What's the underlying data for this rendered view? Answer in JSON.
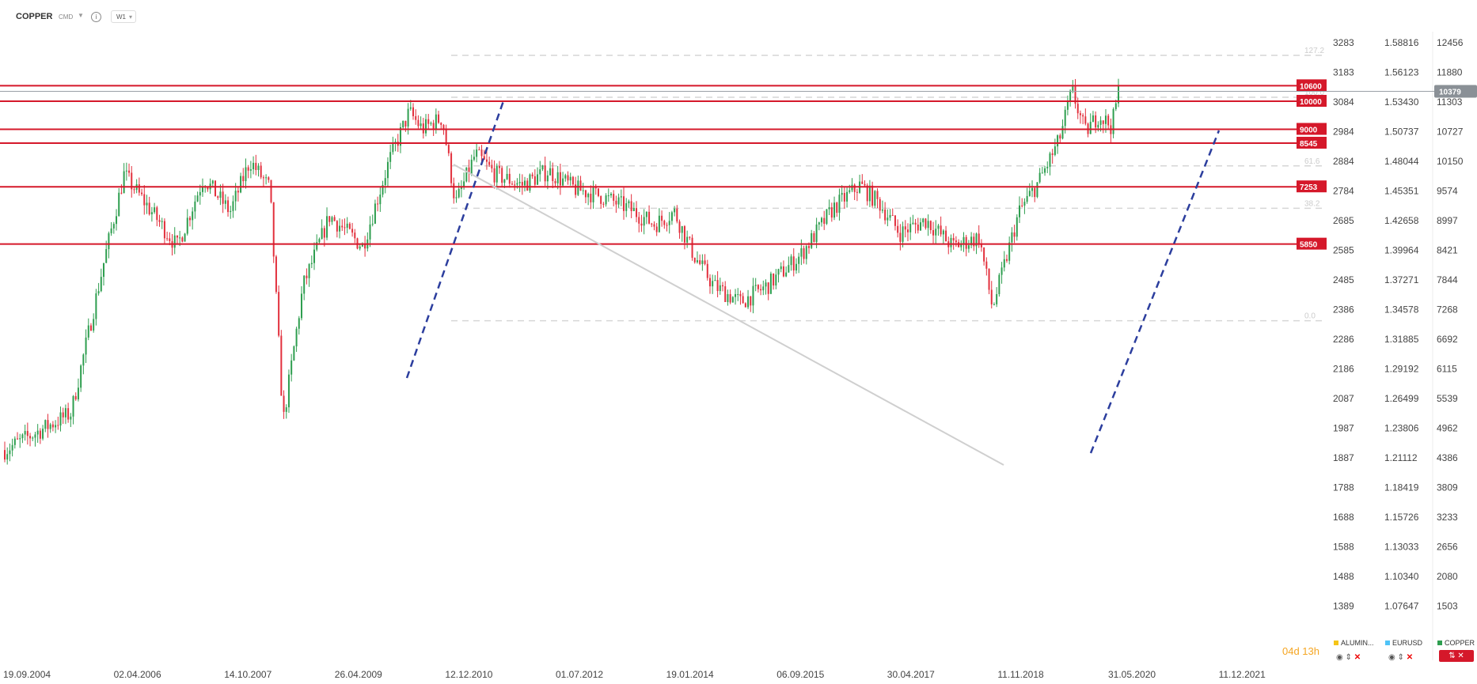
{
  "header": {
    "symbol": "COPPER",
    "symbol_type": "CMD",
    "timeframe": "W1"
  },
  "axis": {
    "left_prices": [
      "3283",
      "3183",
      "3084",
      "2984",
      "2884",
      "2784",
      "2685",
      "2585",
      "2485",
      "2386",
      "2286",
      "2186",
      "2087",
      "1987",
      "1887",
      "1788",
      "1688",
      "1588",
      "1488",
      "1389"
    ],
    "mid_prices": [
      "1.58816",
      "1.56123",
      "1.53430",
      "1.50737",
      "1.48044",
      "1.45351",
      "1.42658",
      "1.39964",
      "1.37271",
      "1.34578",
      "1.31885",
      "1.29192",
      "1.26499",
      "1.23806",
      "1.21112",
      "1.18419",
      "1.15726",
      "1.13033",
      "1.10340",
      "1.07647"
    ],
    "right_prices": [
      "12456",
      "11880",
      "11303",
      "10727",
      "10150",
      "9574",
      "8997",
      "8421",
      "7844",
      "7268",
      "6692",
      "6115",
      "5539",
      "4962",
      "4386",
      "3809",
      "3233",
      "2656",
      "2080",
      "1503"
    ],
    "current_price": "10379"
  },
  "chart_data": {
    "type": "candlestick",
    "symbol": "COPPER",
    "timeframe": "W1",
    "x_dates": [
      "19.09.2004",
      "02.04.2006",
      "14.10.2007",
      "26.04.2009",
      "12.12.2010",
      "01.07.2012",
      "19.01.2014",
      "06.09.2015",
      "30.04.2017",
      "11.11.2018",
      "31.05.2020",
      "11.12.2021"
    ],
    "y_range": [
      1503,
      12456
    ],
    "current_price": 10379,
    "horizontal_levels": [
      {
        "label": "10600",
        "value": 10600
      },
      {
        "label": "10000",
        "value": 10000
      },
      {
        "label": "9000",
        "value": 9000
      },
      {
        "label": "8545",
        "value": 8545
      },
      {
        "label": "7253",
        "value": 7253
      },
      {
        "label": "5850",
        "value": 5850
      }
    ],
    "fibonacci_levels": [
      {
        "label": "127.2",
        "value": 11880
      },
      {
        "label": "100.0",
        "value": 10150
      },
      {
        "label": "61.6",
        "value": 7844
      },
      {
        "label": "38.2",
        "value": 6692
      },
      {
        "label": "0.0",
        "value": 4386
      }
    ],
    "approx_close_path": [
      [
        0,
        2700
      ],
      [
        0.05,
        3100
      ],
      [
        0.075,
        5500
      ],
      [
        0.09,
        7600
      ],
      [
        0.13,
        5800
      ],
      [
        0.15,
        7500
      ],
      [
        0.17,
        6600
      ],
      [
        0.185,
        8000
      ],
      [
        0.2,
        7200
      ],
      [
        0.21,
        3000
      ],
      [
        0.225,
        5000
      ],
      [
        0.245,
        6500
      ],
      [
        0.27,
        5800
      ],
      [
        0.29,
        8000
      ],
      [
        0.305,
        9600
      ],
      [
        0.315,
        9000
      ],
      [
        0.33,
        9400
      ],
      [
        0.34,
        6800
      ],
      [
        0.355,
        8200
      ],
      [
        0.37,
        7600
      ],
      [
        0.39,
        7300
      ],
      [
        0.41,
        7700
      ],
      [
        0.43,
        7200
      ],
      [
        0.45,
        7000
      ],
      [
        0.47,
        6700
      ],
      [
        0.49,
        6300
      ],
      [
        0.505,
        6600
      ],
      [
        0.52,
        5600
      ],
      [
        0.535,
        5000
      ],
      [
        0.555,
        4700
      ],
      [
        0.575,
        5000
      ],
      [
        0.6,
        5600
      ],
      [
        0.625,
        6700
      ],
      [
        0.645,
        7300
      ],
      [
        0.66,
        6800
      ],
      [
        0.675,
        6100
      ],
      [
        0.695,
        6400
      ],
      [
        0.715,
        5800
      ],
      [
        0.735,
        6000
      ],
      [
        0.745,
        4600
      ],
      [
        0.765,
        6600
      ],
      [
        0.78,
        7400
      ],
      [
        0.795,
        8600
      ],
      [
        0.805,
        10400
      ],
      [
        0.815,
        8900
      ],
      [
        0.825,
        9500
      ],
      [
        0.835,
        9100
      ],
      [
        0.84,
        10379
      ]
    ]
  },
  "bottom": {
    "countdown": "04d 13h",
    "instruments": [
      {
        "label": "ALUMIN...",
        "color": "#f5c518"
      },
      {
        "label": "EURUSD",
        "color": "#4fc3f7"
      },
      {
        "label": "COPPER",
        "color": "#2e9e4f"
      }
    ]
  },
  "colors": {
    "up": "#2e9e4f",
    "down": "#e2303d",
    "level": "#d5182a",
    "trend": "#2c3e9e"
  }
}
